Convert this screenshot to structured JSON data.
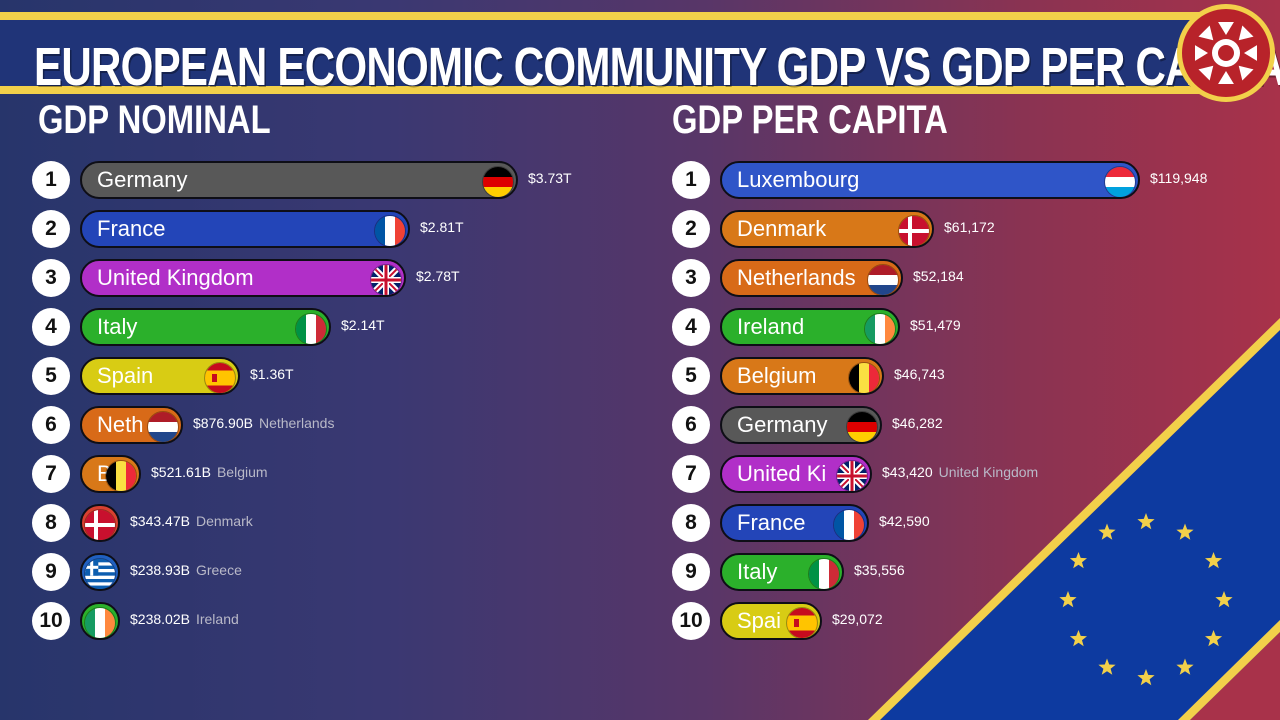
{
  "title": "EUROPEAN ECONOMIC COMMUNITY GDP VS GDP PER CAPITA",
  "colors": {
    "title_band": "#203478",
    "accent_yellow": "#f2d04a"
  },
  "chart_data": [
    {
      "type": "bar",
      "title": "GDP NOMINAL",
      "categories": [
        "Germany",
        "France",
        "United Kingdom",
        "Italy",
        "Spain",
        "Netherlands",
        "Belgium",
        "Denmark",
        "Greece",
        "Ireland"
      ],
      "values": [
        3730000000000,
        2810000000000,
        2780000000000,
        2140000000000,
        1360000000000,
        876900000000,
        521610000000,
        343470000000,
        238930000000,
        238020000000
      ],
      "rows": [
        {
          "rank": "1",
          "country": "Germany",
          "label": "Germany",
          "value_text": "$3.73T",
          "extra": "",
          "color": "#585858",
          "flag": "de"
        },
        {
          "rank": "2",
          "country": "France",
          "label": "France",
          "value_text": "$2.81T",
          "extra": "",
          "color": "#2345b8",
          "flag": "fr"
        },
        {
          "rank": "3",
          "country": "United Kingdom",
          "label": "United Kingdom",
          "value_text": "$2.78T",
          "extra": "",
          "color": "#b12fc8",
          "flag": "gb"
        },
        {
          "rank": "4",
          "country": "Italy",
          "label": "Italy",
          "value_text": "$2.14T",
          "extra": "",
          "color": "#2bb02b",
          "flag": "it"
        },
        {
          "rank": "5",
          "country": "Spain",
          "label": "Spain",
          "value_text": "$1.36T",
          "extra": "",
          "color": "#d8cc14",
          "flag": "es"
        },
        {
          "rank": "6",
          "country": "Netherlands",
          "label": "Neth",
          "value_text": "$876.90B",
          "extra": "Netherlands",
          "color": "#d86a18",
          "flag": "nl"
        },
        {
          "rank": "7",
          "country": "Belgium",
          "label": "B",
          "value_text": "$521.61B",
          "extra": "Belgium",
          "color": "#d87818",
          "flag": "be"
        },
        {
          "rank": "8",
          "country": "Denmark",
          "label": "",
          "value_text": "$343.47B",
          "extra": "Denmark",
          "color": "#d84030",
          "flag": "dk"
        },
        {
          "rank": "9",
          "country": "Greece",
          "label": "",
          "value_text": "$238.93B",
          "extra": "Greece",
          "color": "#2060c0",
          "flag": "gr"
        },
        {
          "rank": "10",
          "country": "Ireland",
          "label": "",
          "value_text": "$238.02B",
          "extra": "Ireland",
          "color": "#2bb02b",
          "flag": "ie"
        }
      ]
    },
    {
      "type": "bar",
      "title": "GDP PER CAPITA",
      "categories": [
        "Luxembourg",
        "Denmark",
        "Netherlands",
        "Ireland",
        "Belgium",
        "Germany",
        "United Kingdom",
        "France",
        "Italy",
        "Spain"
      ],
      "values": [
        119948,
        61172,
        52184,
        51479,
        46743,
        46282,
        43420,
        42590,
        35556,
        29072
      ],
      "rows": [
        {
          "rank": "1",
          "country": "Luxembourg",
          "label": "Luxembourg",
          "value_text": "$119,948",
          "extra": "",
          "color": "#2f55c8",
          "flag": "lu"
        },
        {
          "rank": "2",
          "country": "Denmark",
          "label": "Denmark",
          "value_text": "$61,172",
          "extra": "",
          "color": "#d87818",
          "flag": "dk"
        },
        {
          "rank": "3",
          "country": "Netherlands",
          "label": "Netherlands",
          "value_text": "$52,184",
          "extra": "",
          "color": "#d86a18",
          "flag": "nl"
        },
        {
          "rank": "4",
          "country": "Ireland",
          "label": "Ireland",
          "value_text": "$51,479",
          "extra": "",
          "color": "#2bb02b",
          "flag": "ie"
        },
        {
          "rank": "5",
          "country": "Belgium",
          "label": "Belgium",
          "value_text": "$46,743",
          "extra": "",
          "color": "#d87818",
          "flag": "be"
        },
        {
          "rank": "6",
          "country": "Germany",
          "label": "Germany",
          "value_text": "$46,282",
          "extra": "",
          "color": "#585858",
          "flag": "de"
        },
        {
          "rank": "7",
          "country": "United Kingdom",
          "label": "United Ki",
          "value_text": "$43,420",
          "extra": "United Kingdom",
          "color": "#b12fc8",
          "flag": "gb"
        },
        {
          "rank": "8",
          "country": "France",
          "label": "France",
          "value_text": "$42,590",
          "extra": "",
          "color": "#2345b8",
          "flag": "fr"
        },
        {
          "rank": "9",
          "country": "Italy",
          "label": "Italy",
          "value_text": "$35,556",
          "extra": "",
          "color": "#2bb02b",
          "flag": "it"
        },
        {
          "rank": "10",
          "country": "Spain",
          "label": "Spai",
          "value_text": "$29,072",
          "extra": "",
          "color": "#d8cc14",
          "flag": "es"
        }
      ]
    }
  ]
}
